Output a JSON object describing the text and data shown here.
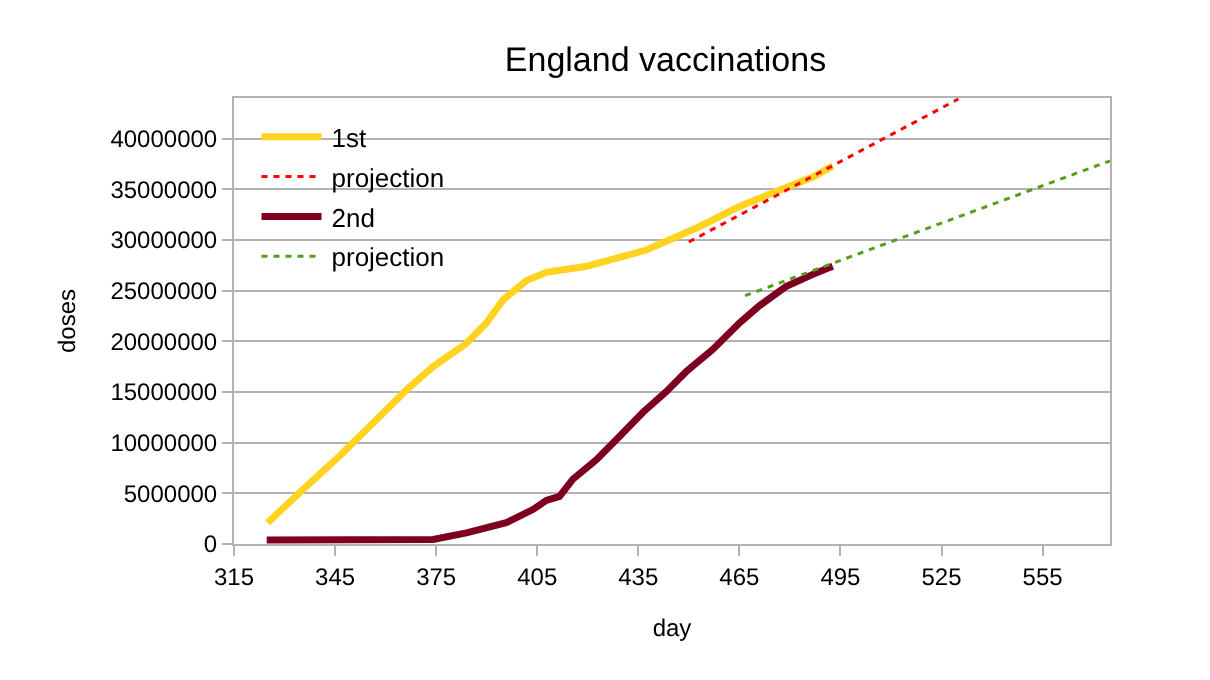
{
  "chart_data": {
    "type": "line",
    "title": "England vaccinations",
    "xlabel": "day",
    "ylabel": "doses",
    "xlim": [
      315,
      575
    ],
    "xticks": [
      315,
      345,
      375,
      405,
      435,
      465,
      495,
      525,
      555
    ],
    "ylim": [
      0,
      44000000
    ],
    "yticks": [
      0,
      5000000,
      10000000,
      15000000,
      20000000,
      25000000,
      30000000,
      35000000,
      40000000
    ],
    "grid": "y",
    "legend": "top left",
    "marker": "none",
    "series": [
      {
        "name": "1st",
        "color": "#ffd320",
        "line_style": "solid",
        "x": [
          325,
          336.5,
          346.4,
          358.3,
          366.2,
          374.1,
          384,
          389.9,
          394.9,
          401.8,
          407.7,
          419.6,
          437.4,
          453.1,
          465,
          476.9,
          486.8,
          492.7
        ],
        "values": [
          2100000,
          5700000,
          8700000,
          12600000,
          15200000,
          17500000,
          19800000,
          21800000,
          24100000,
          26000000,
          26800000,
          27400000,
          29000000,
          31300000,
          33300000,
          34900000,
          36200000,
          37300000
        ]
      },
      {
        "name": "projection",
        "color": "#ff0000",
        "line_style": "dotted",
        "x": [
          450,
          530
        ],
        "values": [
          29800000,
          43900000
        ]
      },
      {
        "name": "2nd",
        "color": "#7e0021",
        "line_style": "solid",
        "x": [
          324.7,
          374.1,
          384,
          395.8,
          403.7,
          407.7,
          411.6,
          415.6,
          422.5,
          429.4,
          436.4,
          443.2,
          449.2,
          457.1,
          465,
          470.9,
          478.8,
          486.8,
          492.7
        ],
        "values": [
          400000,
          450000,
          1100000,
          2100000,
          3400000,
          4300000,
          4700000,
          6400000,
          8300000,
          10600000,
          13000000,
          15000000,
          17000000,
          19200000,
          21800000,
          23500000,
          25400000,
          26600000,
          27400000
        ]
      },
      {
        "name": "projection",
        "color": "#579d1c",
        "line_style": "dotted",
        "x": [
          466.7,
          575
        ],
        "values": [
          24500000,
          37800000
        ]
      }
    ]
  }
}
